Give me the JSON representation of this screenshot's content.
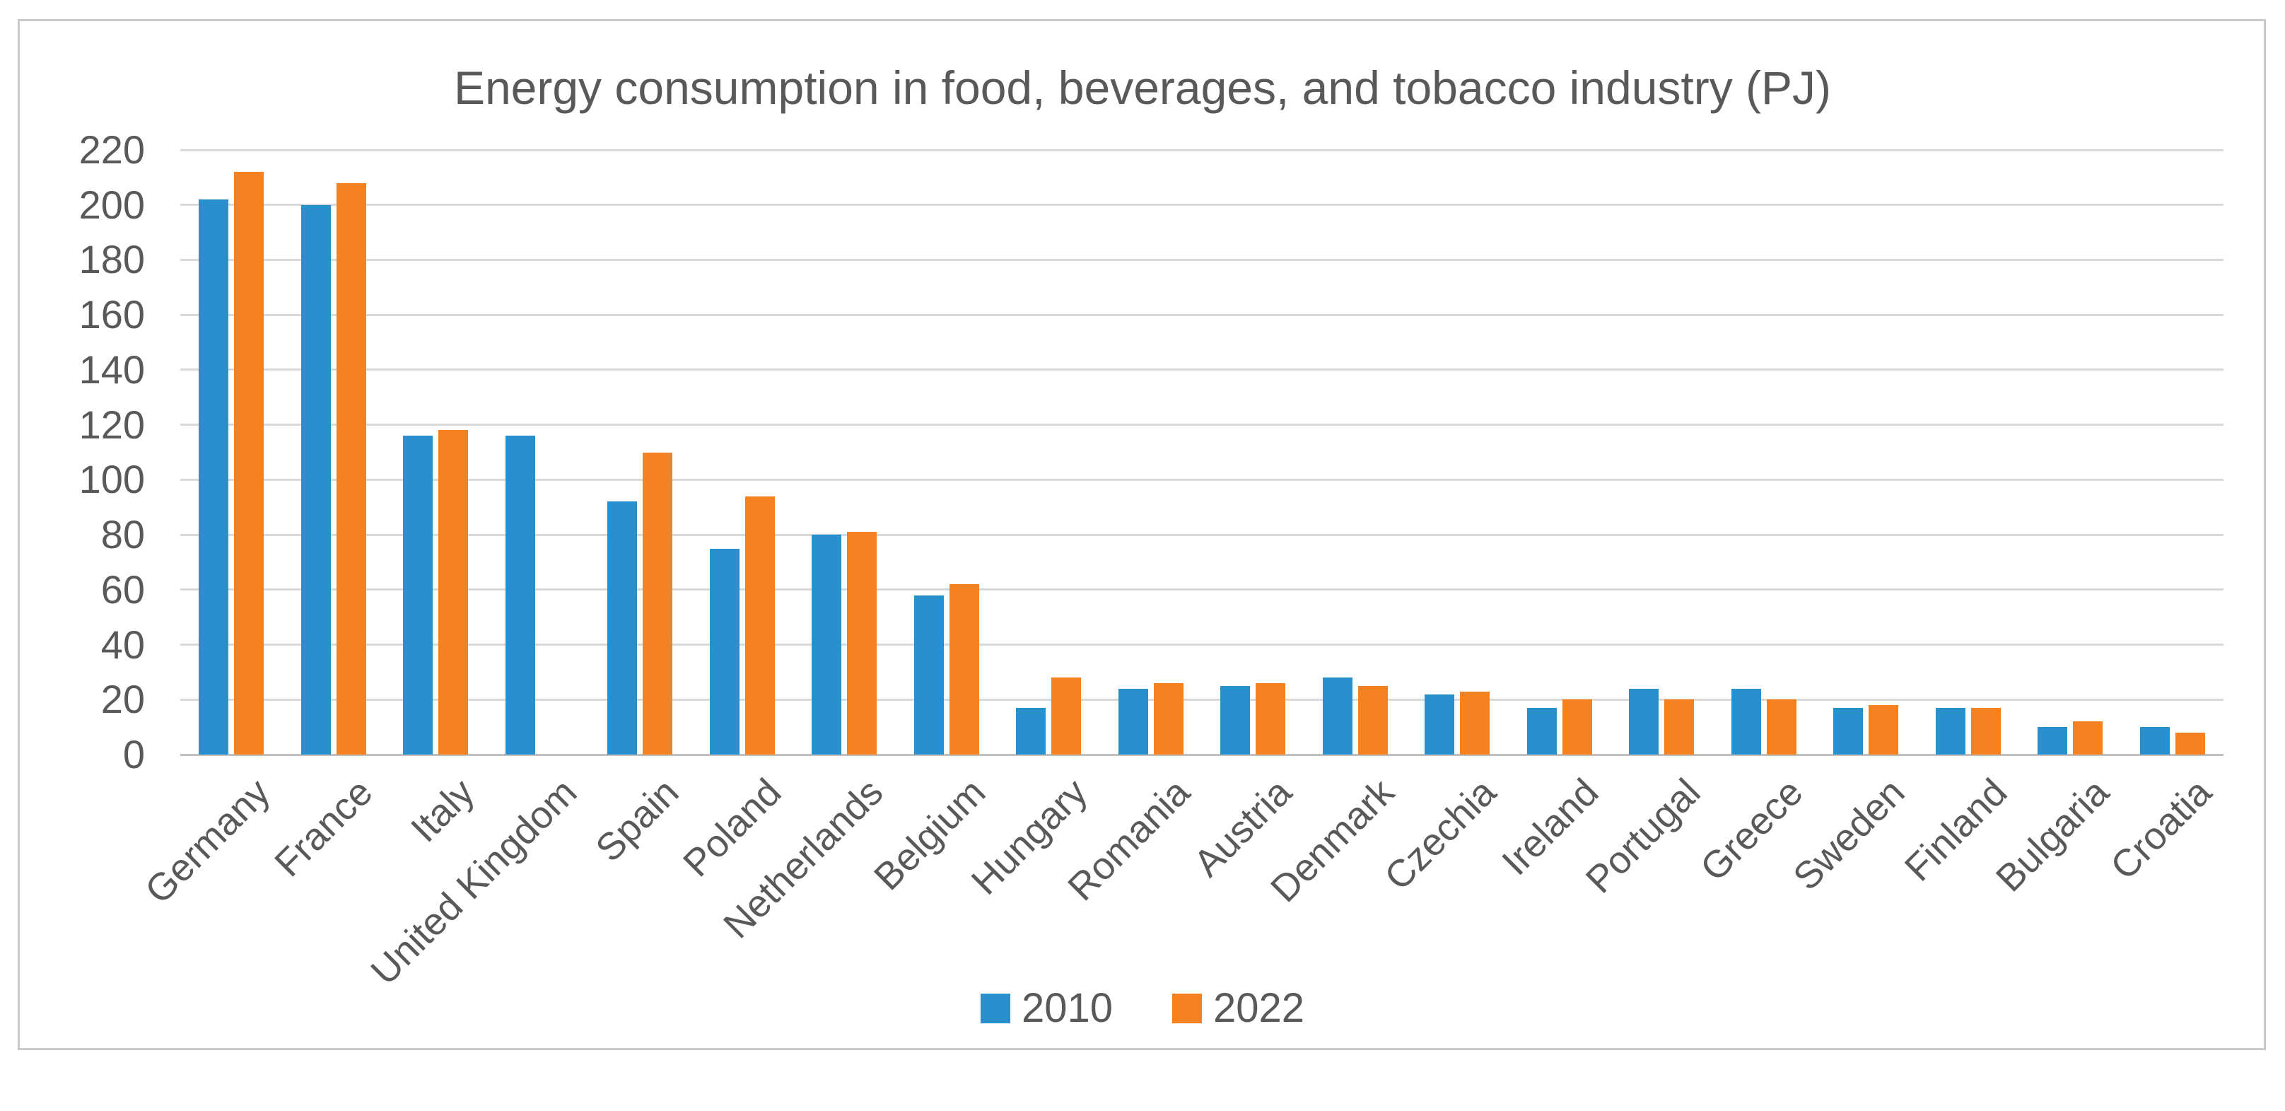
{
  "colors": {
    "series_2010": "#2990CE",
    "series_2022": "#F58220",
    "grid": "#D9D9D9",
    "baseline": "#BFBFBF",
    "text": "#595959",
    "frame_border": "#C9C9C9",
    "background": "#FFFFFF"
  },
  "chart_data": {
    "type": "bar",
    "title": "Energy consumption in food, beverages, and tobacco industry (PJ)",
    "categories": [
      "Germany",
      "France",
      "Italy",
      "United Kingdom",
      "Spain",
      "Poland",
      "Netherlands",
      "Belgium",
      "Hungary",
      "Romania",
      "Austria",
      "Denmark",
      "Czechia",
      "Ireland",
      "Portugal",
      "Greece",
      "Sweden",
      "Finland",
      "Bulgaria",
      "Croatia"
    ],
    "series": [
      {
        "name": "2010",
        "color": "#2990CE",
        "values": [
          202,
          200,
          116,
          116,
          92,
          75,
          80,
          58,
          17,
          24,
          25,
          28,
          22,
          17,
          24,
          24,
          17,
          17,
          10,
          10
        ]
      },
      {
        "name": "2022",
        "color": "#F58220",
        "values": [
          212,
          208,
          118,
          null,
          110,
          94,
          81,
          62,
          28,
          26,
          26,
          25,
          23,
          20,
          20,
          20,
          18,
          17,
          12,
          8
        ]
      }
    ],
    "xlabel": "",
    "ylabel": "",
    "ylim": [
      0,
      220
    ],
    "ytick_step": 20,
    "y_tick_labels": [
      "0",
      "20",
      "40",
      "60",
      "80",
      "100",
      "120",
      "140",
      "160",
      "180",
      "200",
      "220"
    ],
    "grid": true,
    "legend_position": "bottom",
    "legend": [
      "2010",
      "2022"
    ]
  }
}
